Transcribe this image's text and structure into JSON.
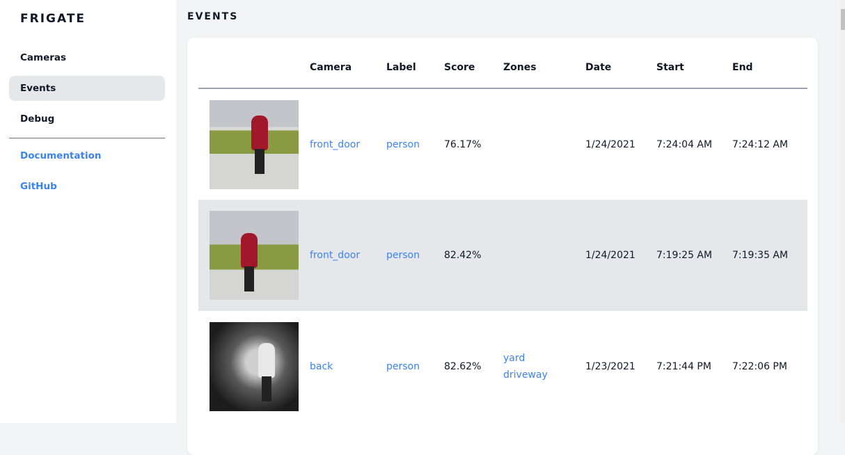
{
  "sidebar": {
    "logo": "FRIGATE",
    "items": [
      {
        "label": "Cameras"
      },
      {
        "label": "Events",
        "active": true
      },
      {
        "label": "Debug"
      }
    ],
    "links": [
      {
        "label": "Documentation"
      },
      {
        "label": "GitHub"
      }
    ]
  },
  "page": {
    "title": "EVENTS"
  },
  "table": {
    "headers": [
      "",
      "Camera",
      "Label",
      "Score",
      "Zones",
      "Date",
      "Start",
      "End"
    ],
    "rows": [
      {
        "camera": "front_door",
        "label": "person",
        "score": "76.17%",
        "zones": [],
        "date": "1/24/2021",
        "start": "7:24:04 AM",
        "end": "7:24:12 AM"
      },
      {
        "camera": "front_door",
        "label": "person",
        "score": "82.42%",
        "zones": [],
        "date": "1/24/2021",
        "start": "7:19:25 AM",
        "end": "7:19:35 AM"
      },
      {
        "camera": "back",
        "label": "person",
        "score": "82.62%",
        "zones": [
          "yard",
          "driveway"
        ],
        "date": "1/23/2021",
        "start": "7:21:44 PM",
        "end": "7:22:06 PM"
      }
    ]
  },
  "colors": {
    "accent": "#3b82f6",
    "active_bg": "#e5e7eb"
  }
}
